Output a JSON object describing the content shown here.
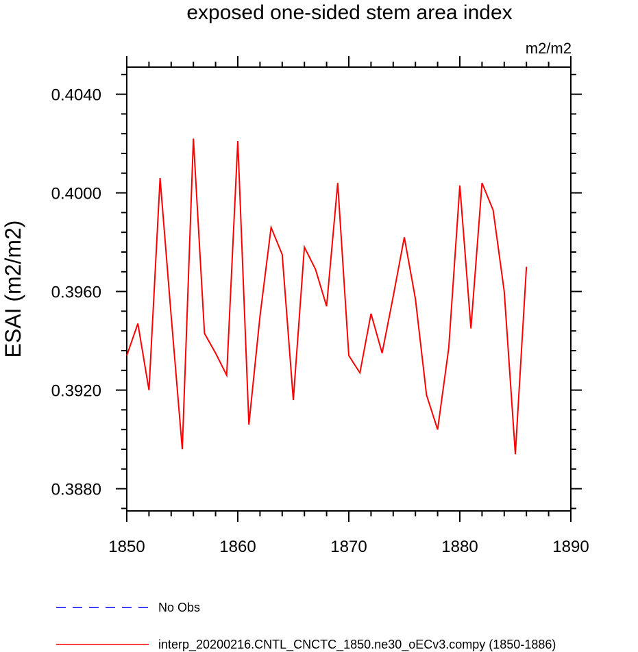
{
  "chart_data": {
    "type": "line",
    "title": "exposed one-sided stem area index",
    "units": "m2/m2",
    "xlabel": "",
    "ylabel": "ESAI  (m2/m2)",
    "xlim": [
      1850,
      1890
    ],
    "ylim": [
      0.3871,
      0.4051
    ],
    "grid": false,
    "legend_position": "bottom",
    "x_ticks": [
      1850,
      1860,
      1870,
      1880,
      1890
    ],
    "x_tick_labels": [
      "1850",
      "1860",
      "1870",
      "1880",
      "1890"
    ],
    "y_ticks": [
      0.388,
      0.392,
      0.396,
      0.4,
      0.404
    ],
    "y_tick_labels": [
      "0.3880",
      "0.3920",
      "0.3960",
      "0.4000",
      "0.4040"
    ],
    "series": [
      {
        "name": "No Obs",
        "color": "#0000ff",
        "style": "dashed",
        "x": [],
        "y": []
      },
      {
        "name": "interp_20200216.CNTL_CNCTC_1850.ne30_oECv3.compy (1850-1886)",
        "color": "#ff0000",
        "style": "solid",
        "x": [
          1850,
          1851,
          1852,
          1853,
          1854,
          1855,
          1856,
          1857,
          1858,
          1859,
          1860,
          1861,
          1862,
          1863,
          1864,
          1865,
          1866,
          1867,
          1868,
          1869,
          1870,
          1871,
          1872,
          1873,
          1874,
          1875,
          1876,
          1877,
          1878,
          1879,
          1880,
          1881,
          1882,
          1883,
          1884,
          1885,
          1886
        ],
        "y": [
          0.3934,
          0.3947,
          0.392,
          0.4006,
          0.395,
          0.3896,
          0.4022,
          0.3943,
          0.3935,
          0.3926,
          0.4021,
          0.3906,
          0.395,
          0.3986,
          0.3975,
          0.3916,
          0.3978,
          0.3969,
          0.3954,
          0.4004,
          0.3934,
          0.3927,
          0.3951,
          0.3935,
          0.3958,
          0.3982,
          0.3957,
          0.3918,
          0.3904,
          0.3937,
          0.4003,
          0.3945,
          0.4004,
          0.3993,
          0.396,
          0.3894,
          0.397
        ]
      }
    ]
  }
}
